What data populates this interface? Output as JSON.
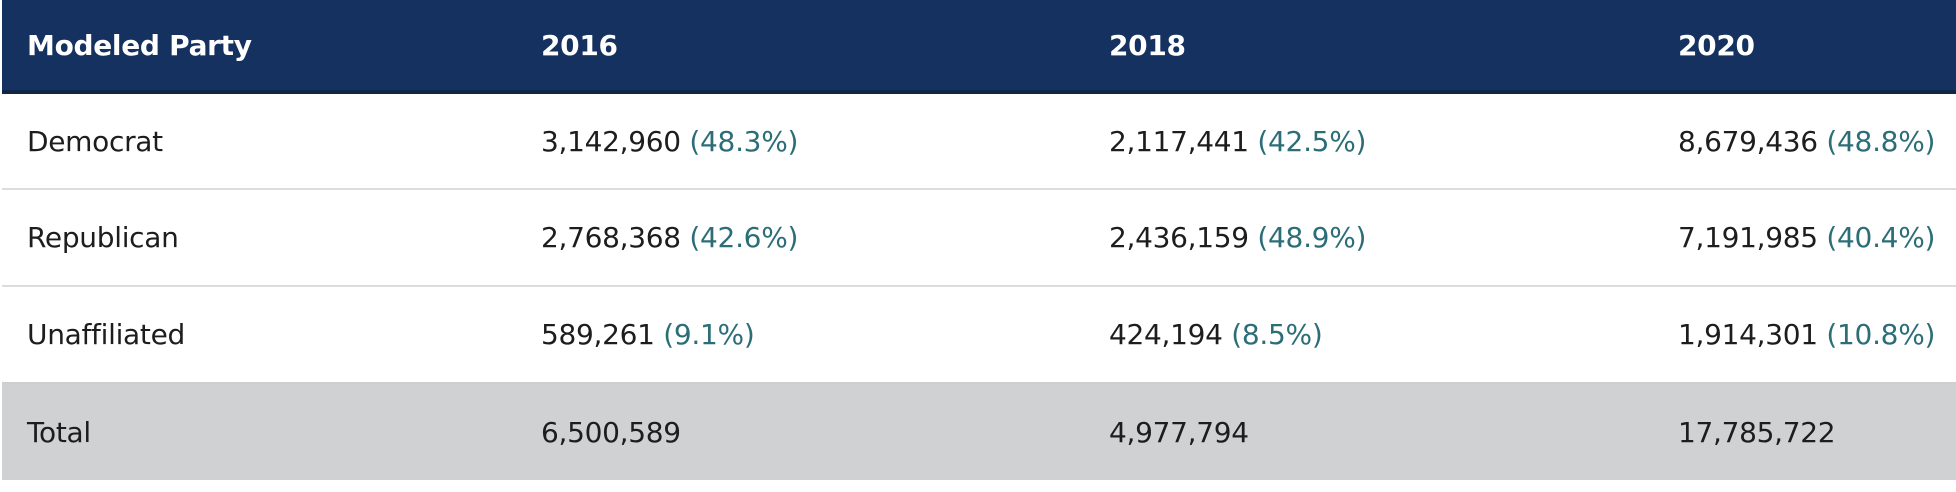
{
  "table": {
    "headers": [
      "Modeled Party",
      "2016",
      "2018",
      "2020"
    ],
    "rows": [
      {
        "label": "Democrat",
        "cells": [
          {
            "value": "3,142,960",
            "pct": "(48.3%)"
          },
          {
            "value": "2,117,441",
            "pct": "(42.5%)"
          },
          {
            "value": "8,679,436",
            "pct": "(48.8%)"
          }
        ]
      },
      {
        "label": "Republican",
        "cells": [
          {
            "value": "2,768,368",
            "pct": "(42.6%)"
          },
          {
            "value": "2,436,159",
            "pct": "(48.9%)"
          },
          {
            "value": "7,191,985",
            "pct": "(40.4%)"
          }
        ]
      },
      {
        "label": "Unaffiliated",
        "cells": [
          {
            "value": "589,261",
            "pct": "(9.1%)"
          },
          {
            "value": "424,194",
            "pct": "(8.5%)"
          },
          {
            "value": "1,914,301",
            "pct": "(10.8%)"
          }
        ]
      }
    ],
    "total": {
      "label": "Total",
      "values": [
        "6,500,589",
        "4,977,794",
        "17,785,722"
      ]
    }
  },
  "colors": {
    "header_bg": "#14315f",
    "header_text": "#ffffff",
    "percent_text": "#2c6e78",
    "total_row_bg": "#d0d1d3",
    "row_divider": "#dcdcdc"
  }
}
